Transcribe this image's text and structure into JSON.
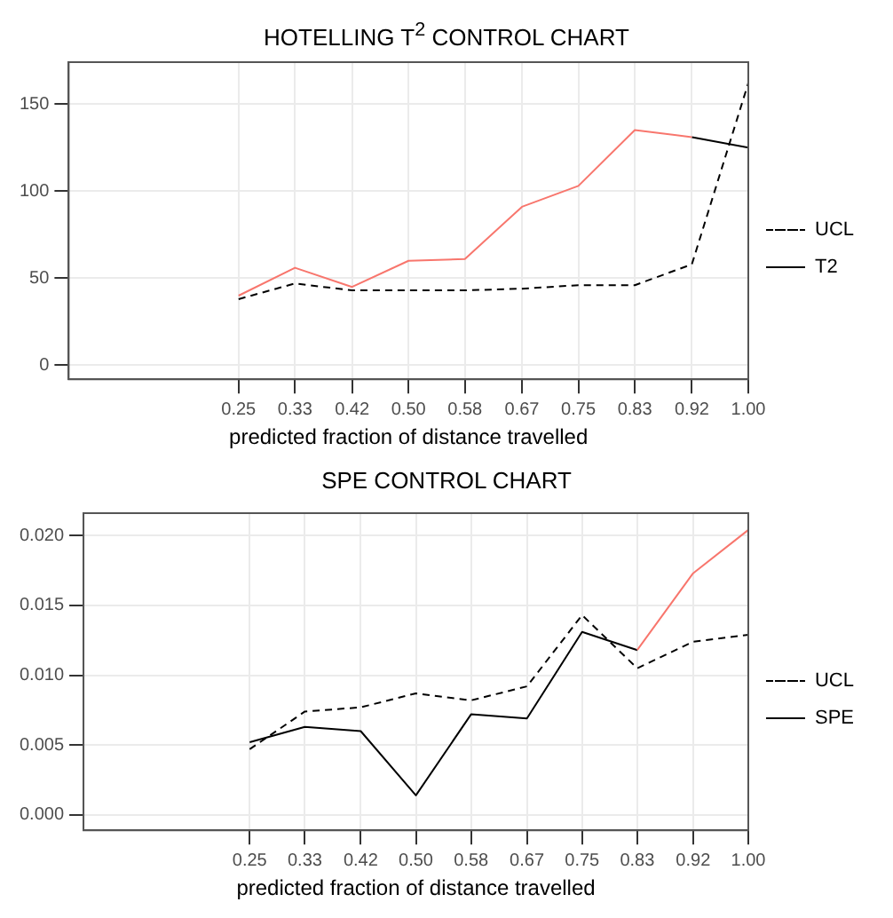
{
  "chart_data": [
    {
      "type": "line",
      "title": "HOTELLING T$^{2}$ CONTROL CHART",
      "xlabel": "predicted fraction of distance travelled",
      "x": [
        0.25,
        0.333,
        0.417,
        0.5,
        0.583,
        0.667,
        0.75,
        0.833,
        0.917,
        1.0
      ],
      "xlim": [
        0,
        1
      ],
      "xticks": [
        0.25,
        {
          "value": 0.333,
          "label": "0.33"
        },
        {
          "value": 0.417,
          "label": "0.42"
        },
        {
          "value": 0.5,
          "label": "0.50"
        },
        {
          "value": 0.583,
          "label": "0.58"
        },
        {
          "value": 0.667,
          "label": "0.67"
        },
        {
          "value": 0.75,
          "label": "0.75"
        },
        {
          "value": 0.833,
          "label": "0.83"
        },
        {
          "value": 0.917,
          "label": "0.92"
        },
        {
          "value": 1.0,
          "label": "1.00"
        }
      ],
      "ylim": [
        -8,
        174
      ],
      "yticks": [
        0,
        50,
        100,
        150
      ],
      "grid": true,
      "legend": "right",
      "marker": "none",
      "series": [
        {
          "name": "UCL",
          "color": "#000000",
          "line_style": "dashed",
          "values": [
            38,
            47,
            43,
            43,
            43,
            44,
            46,
            46,
            58,
            162
          ]
        },
        {
          "name": "T2",
          "color": "#000000",
          "line_style": "solid",
          "values": [
            null,
            null,
            null,
            null,
            null,
            null,
            null,
            null,
            131,
            125
          ]
        },
        {
          "color": "#f8766d",
          "line_style": "solid",
          "values": [
            40,
            56,
            45,
            60,
            61,
            91,
            103,
            135,
            131,
            null
          ]
        }
      ]
    },
    {
      "type": "line",
      "title": "SPE CONTROL CHART",
      "xlabel": "predicted fraction of distance travelled",
      "x": [
        0.25,
        0.333,
        0.417,
        0.5,
        0.583,
        0.667,
        0.75,
        0.833,
        0.917,
        1.0
      ],
      "xlim": [
        0,
        1
      ],
      "xticks": [
        0.25,
        {
          "value": 0.333,
          "label": "0.33"
        },
        {
          "value": 0.417,
          "label": "0.42"
        },
        {
          "value": 0.5,
          "label": "0.50"
        },
        {
          "value": 0.583,
          "label": "0.58"
        },
        {
          "value": 0.667,
          "label": "0.67"
        },
        {
          "value": 0.75,
          "label": "0.75"
        },
        {
          "value": 0.833,
          "label": "0.83"
        },
        {
          "value": 0.917,
          "label": "0.92"
        },
        {
          "value": 1.0,
          "label": "1.00"
        }
      ],
      "ylim": [
        -0.0011,
        0.0216
      ],
      "yticks": [
        {
          "value": 0,
          "label": "0.000"
        },
        {
          "value": 0.005,
          "label": "0.005"
        },
        {
          "value": 0.01,
          "label": "0.010"
        },
        {
          "value": 0.015,
          "label": "0.015"
        },
        {
          "value": 0.02,
          "label": "0.020"
        }
      ],
      "grid": true,
      "legend": "right",
      "marker": "none",
      "series": [
        {
          "name": "UCL",
          "color": "#000000",
          "line_style": "dashed",
          "values": [
            0.0047,
            0.0074,
            0.0077,
            0.0087,
            0.0082,
            0.0092,
            0.0143,
            0.0105,
            0.0124,
            0.0129
          ]
        },
        {
          "name": "SPE",
          "color": "#000000",
          "line_style": "solid",
          "values": [
            0.0052,
            0.0063,
            0.006,
            0.0014,
            0.0072,
            0.0069,
            0.0131,
            0.0118,
            null,
            null
          ]
        },
        {
          "color": "#f8766d",
          "line_style": "solid",
          "values": [
            null,
            null,
            null,
            null,
            null,
            null,
            null,
            0.0118,
            0.0173,
            0.0204
          ]
        }
      ]
    }
  ]
}
